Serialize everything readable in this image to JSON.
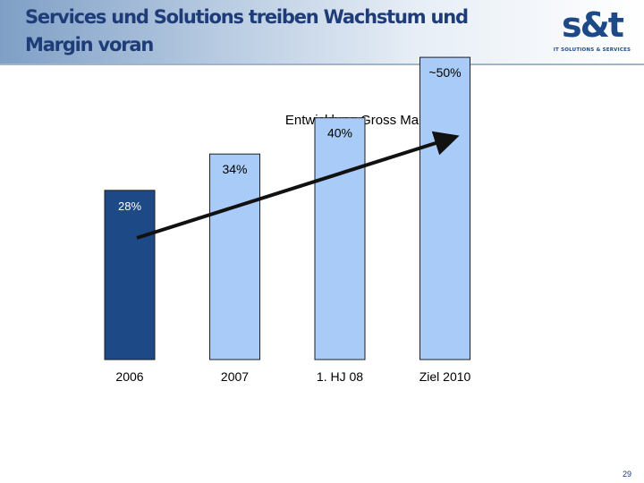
{
  "slide": {
    "title": "Services und Solutions treiben Wachstum und Margin voran",
    "page_number": "29"
  },
  "logo": {
    "mark": "s&t",
    "tagline": "IT SOLUTIONS & SERVICES"
  },
  "colors": {
    "dark_bar": "#1d4a86",
    "light_bar": "#a9cbf7",
    "bar_border": "#1f1f1f",
    "arrow": "#111111",
    "title": "#1d3c78"
  },
  "chart_data": {
    "type": "bar",
    "title": "Entwicklung Gross Margin",
    "categories": [
      "2006",
      "2007",
      "1. HJ 08",
      "Ziel 2010"
    ],
    "values": [
      28,
      34,
      40,
      50
    ],
    "data_labels": [
      "28%",
      "34%",
      "40%",
      "~50%"
    ],
    "highlight_index": 0,
    "ylim": [
      0,
      58
    ],
    "grid": false,
    "legend": "none",
    "trend_arrow": true
  }
}
